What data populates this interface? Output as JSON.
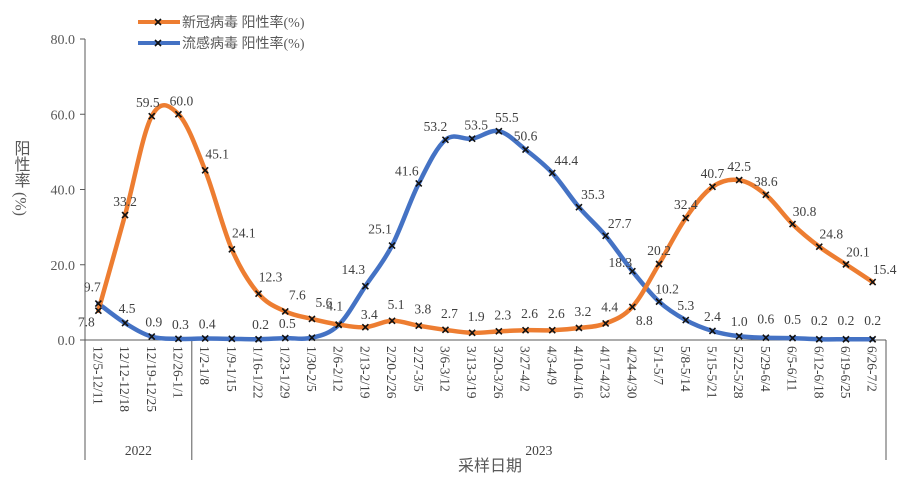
{
  "chart_data": {
    "type": "line",
    "title": "",
    "xlabel": "采样日期",
    "ylabel": "阳性率 (%)",
    "ylim": [
      0,
      80
    ],
    "yticks": [
      "0.0",
      "20.0",
      "40.0",
      "60.0",
      "80.0"
    ],
    "grid": false,
    "legend": "top-left",
    "categories": [
      "12/5-12/11",
      "12/12-12/18",
      "12/19-12/25",
      "12/26-1/1",
      "1/2-1/8",
      "1/9-1/15",
      "1/16-1/22",
      "1/23-1/29",
      "1/30-2/5",
      "2/6-2/12",
      "2/13-2/19",
      "2/20-2/26",
      "2/27-3/5",
      "3/6-3/12",
      "3/13-3/19",
      "3/20-3/26",
      "3/27-4/2",
      "4/3-4/9",
      "4/10-4/16",
      "4/17-4/23",
      "4/24-4/30",
      "5/1-5/7",
      "5/8-5/14",
      "5/15-5/21",
      "5/22-5/28",
      "5/29-6/4",
      "6/5-6/11",
      "6/12-6/18",
      "6/19-6/25",
      "6/26-7/2"
    ],
    "year_groups": [
      {
        "label": "2022",
        "count": 4
      },
      {
        "label": "2023",
        "count": 26
      }
    ],
    "series": [
      {
        "name": "新冠病毒 阳性率(%)",
        "color": "#ED7D31",
        "values": [
          7.8,
          33.2,
          59.5,
          60.0,
          45.1,
          24.1,
          12.3,
          7.6,
          5.6,
          4.1,
          3.4,
          5.1,
          3.8,
          2.7,
          1.9,
          2.3,
          2.6,
          2.6,
          3.2,
          4.4,
          8.8,
          20.2,
          32.4,
          40.7,
          42.5,
          38.6,
          30.8,
          24.8,
          20.1,
          15.4
        ],
        "labeled": [
          true,
          true,
          true,
          true,
          true,
          true,
          true,
          true,
          true,
          true,
          true,
          true,
          true,
          true,
          true,
          true,
          true,
          true,
          true,
          true,
          true,
          true,
          true,
          true,
          true,
          true,
          true,
          true,
          true,
          true
        ]
      },
      {
        "name": "流感病毒 阳性率(%)",
        "color": "#4472C4",
        "values": [
          9.7,
          4.5,
          0.9,
          0.3,
          0.4,
          0.3,
          0.2,
          0.5,
          0.6,
          4.0,
          14.3,
          25.1,
          41.6,
          53.2,
          53.5,
          55.5,
          50.6,
          44.4,
          35.3,
          27.7,
          18.3,
          10.2,
          5.3,
          2.4,
          1.0,
          0.6,
          0.5,
          0.2,
          0.2,
          0.2
        ],
        "labeled": [
          true,
          true,
          true,
          true,
          true,
          false,
          true,
          true,
          false,
          false,
          true,
          true,
          true,
          true,
          true,
          true,
          true,
          true,
          true,
          true,
          true,
          true,
          true,
          true,
          true,
          true,
          true,
          true,
          true,
          true
        ]
      }
    ]
  }
}
